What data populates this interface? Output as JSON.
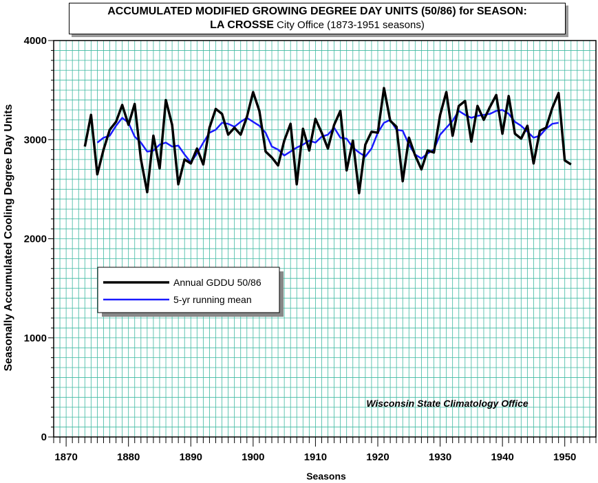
{
  "title": {
    "line1": "ACCUMULATED MODIFIED GROWING DEGREE DAY UNITS (50/86) for SEASON:",
    "location": "LA CROSSE",
    "line2_rest": " City Office (1873-1951 seasons)"
  },
  "credit": "Wisconsin State Climatology Office",
  "colors": {
    "grid": "#3cb8a0",
    "annual": "#000000",
    "mean": "#1a1aff"
  },
  "chart_data": {
    "type": "line",
    "xlabel": "Seasons",
    "ylabel": "Seasonally Accumulated Cooling Degree Day Units",
    "xlim": [
      1868,
      1955
    ],
    "ylim": [
      0,
      4000
    ],
    "xticks": [
      1870,
      1880,
      1890,
      1900,
      1910,
      1920,
      1930,
      1940,
      1950
    ],
    "yticks": [
      0,
      1000,
      2000,
      3000,
      4000
    ],
    "grid": true,
    "legend_position": "center-left",
    "series": [
      {
        "name": "Annual GDDU 50/86",
        "color": "#000000",
        "x": [
          1873,
          1874,
          1875,
          1876,
          1877,
          1878,
          1879,
          1880,
          1881,
          1882,
          1883,
          1884,
          1885,
          1886,
          1887,
          1888,
          1889,
          1890,
          1891,
          1892,
          1893,
          1894,
          1895,
          1896,
          1897,
          1898,
          1899,
          1900,
          1901,
          1902,
          1903,
          1904,
          1905,
          1906,
          1907,
          1908,
          1909,
          1910,
          1911,
          1912,
          1913,
          1914,
          1915,
          1916,
          1917,
          1918,
          1919,
          1920,
          1921,
          1922,
          1923,
          1924,
          1925,
          1926,
          1927,
          1928,
          1929,
          1930,
          1931,
          1932,
          1933,
          1934,
          1935,
          1936,
          1937,
          1938,
          1939,
          1940,
          1941,
          1942,
          1943,
          1944,
          1945,
          1946,
          1947,
          1948,
          1949,
          1950,
          1951
        ],
        "y": [
          2930,
          3250,
          2650,
          2900,
          3100,
          3180,
          3350,
          3150,
          3360,
          2800,
          2470,
          3040,
          2710,
          3400,
          3150,
          2550,
          2800,
          2760,
          2910,
          2750,
          3120,
          3310,
          3260,
          3050,
          3120,
          3050,
          3230,
          3480,
          3290,
          2880,
          2820,
          2740,
          2990,
          3160,
          2550,
          3110,
          2890,
          3210,
          3070,
          2910,
          3150,
          3290,
          2690,
          2990,
          2460,
          2950,
          3080,
          3070,
          3520,
          3190,
          3130,
          2580,
          3020,
          2840,
          2700,
          2890,
          2870,
          3250,
          3480,
          3040,
          3340,
          3390,
          2980,
          3340,
          3200,
          3330,
          3450,
          3060,
          3440,
          3060,
          3010,
          3140,
          2760,
          3090,
          3120,
          3320,
          3470,
          2790,
          2750
        ]
      },
      {
        "name": "5-yr running mean",
        "color": "#1a1aff",
        "x": [
          1875,
          1876,
          1877,
          1878,
          1879,
          1880,
          1881,
          1882,
          1883,
          1884,
          1885,
          1886,
          1887,
          1888,
          1889,
          1890,
          1891,
          1892,
          1893,
          1894,
          1895,
          1896,
          1897,
          1898,
          1899,
          1900,
          1901,
          1902,
          1903,
          1904,
          1905,
          1906,
          1907,
          1908,
          1909,
          1910,
          1911,
          1912,
          1913,
          1914,
          1915,
          1916,
          1917,
          1918,
          1919,
          1920,
          1921,
          1922,
          1923,
          1924,
          1925,
          1926,
          1927,
          1928,
          1929,
          1930,
          1931,
          1932,
          1933,
          1934,
          1935,
          1936,
          1937,
          1938,
          1939,
          1940,
          1941,
          1942,
          1943,
          1944,
          1945,
          1946,
          1947,
          1948,
          1949
        ],
        "y": [
          2970,
          3020,
          3040,
          3140,
          3220,
          3170,
          3030,
          2970,
          2880,
          2890,
          2950,
          2970,
          2930,
          2940,
          2850,
          2770,
          2860,
          2970,
          3070,
          3100,
          3170,
          3160,
          3130,
          3180,
          3220,
          3180,
          3140,
          3070,
          2930,
          2900,
          2840,
          2880,
          2920,
          2950,
          2990,
          2970,
          3030,
          3050,
          3120,
          3020,
          3010,
          2920,
          2870,
          2830,
          2910,
          3070,
          3170,
          3200,
          3100,
          3090,
          2950,
          2850,
          2810,
          2860,
          2900,
          3050,
          3120,
          3190,
          3290,
          3250,
          3220,
          3240,
          3250,
          3260,
          3290,
          3300,
          3260,
          3180,
          3140,
          3080,
          3020,
          3040,
          3110,
          3160,
          3170
        ]
      }
    ]
  }
}
